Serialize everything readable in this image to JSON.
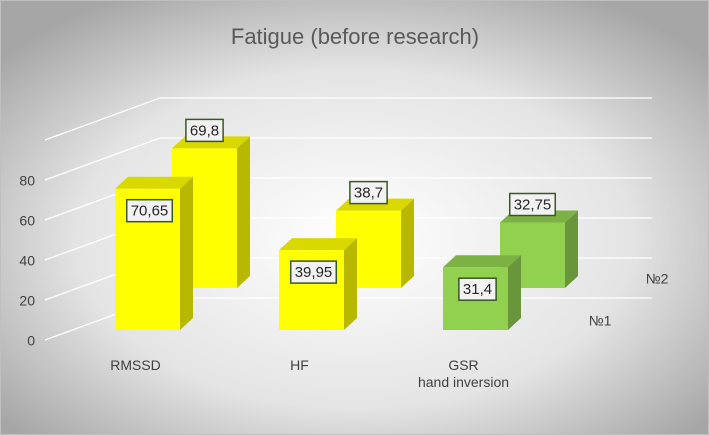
{
  "chart_data": {
    "type": "bar3d",
    "title": "Fatigue (before research)",
    "categories": [
      "RMSSD",
      "HF",
      "GSR\nhand inversion"
    ],
    "series": [
      {
        "name": "№1",
        "colors": [
          "#ffff00",
          "#ffff00",
          "#92d050"
        ],
        "values": [
          70.65,
          39.95,
          31.4
        ],
        "value_labels": [
          "70,65",
          "39,95",
          "31,4"
        ]
      },
      {
        "name": "№2",
        "colors": [
          "#ffff00",
          "#ffff00",
          "#92d050"
        ],
        "values": [
          69.8,
          38.7,
          32.75
        ],
        "value_labels": [
          "69,8",
          "38,7",
          "32,75"
        ]
      }
    ],
    "ylim": [
      0,
      100
    ],
    "yticks": [
      0,
      20,
      40,
      60,
      80
    ],
    "grid": true
  }
}
